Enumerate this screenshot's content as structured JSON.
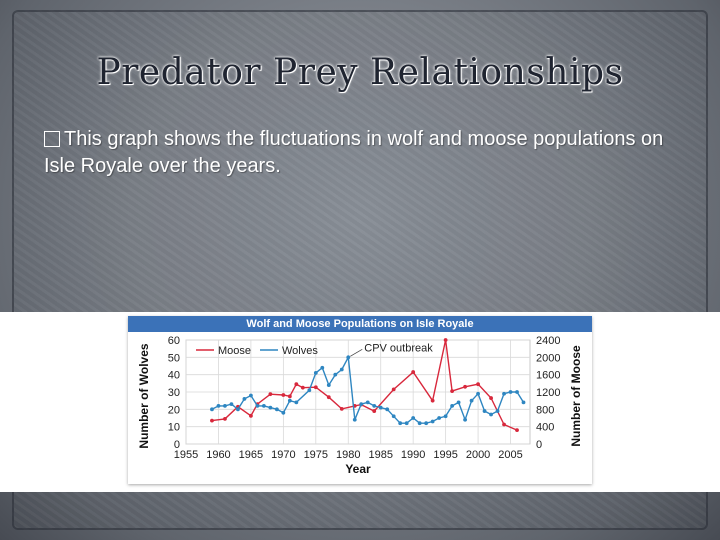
{
  "slide": {
    "title": "Predator Prey Relationships",
    "bullet_text": "This graph shows the fluctuations in wolf and moose populations on Isle Royale over the years."
  },
  "chart_data": {
    "type": "line",
    "title": "Wolf and Moose Populations on Isle Royale",
    "xlabel": "Year",
    "ylabel_left": "Number of Wolves",
    "ylabel_right": "Number of Moose",
    "xlim": [
      1955,
      2008
    ],
    "ylim_left": [
      0,
      60
    ],
    "ylim_right": [
      0,
      2400
    ],
    "x_ticks": [
      1955,
      1960,
      1965,
      1970,
      1975,
      1980,
      1985,
      1990,
      1995,
      2000,
      2005
    ],
    "y_ticks_left": [
      0,
      10,
      20,
      30,
      40,
      50,
      60
    ],
    "y_ticks_right": [
      0,
      400,
      800,
      1200,
      1600,
      2000,
      2400
    ],
    "grid": true,
    "legend": "top-left",
    "annotation": {
      "text": "CPV outbreak",
      "x": 1980,
      "y": 50
    },
    "series": [
      {
        "name": "Moose",
        "axis": "right",
        "color": "#d8283c",
        "x": [
          1959,
          1961,
          1963,
          1965,
          1966,
          1968,
          1970,
          1971,
          1972,
          1973,
          1975,
          1977,
          1979,
          1981,
          1982,
          1984,
          1987,
          1990,
          1993,
          1995,
          1996,
          1998,
          2000,
          2002,
          2004,
          2006
        ],
        "y": [
          540,
          580,
          860,
          650,
          920,
          1150,
          1130,
          1100,
          1380,
          1300,
          1310,
          1080,
          810,
          880,
          910,
          760,
          1260,
          1660,
          1000,
          2400,
          1220,
          1320,
          1380,
          1060,
          450,
          320
        ]
      },
      {
        "name": "Wolves",
        "axis": "left",
        "color": "#2e86c1",
        "x": [
          1959,
          1960,
          1961,
          1962,
          1963,
          1964,
          1965,
          1966,
          1967,
          1968,
          1969,
          1970,
          1971,
          1972,
          1974,
          1975,
          1976,
          1977,
          1978,
          1979,
          1980,
          1981,
          1982,
          1983,
          1984,
          1985,
          1986,
          1987,
          1988,
          1989,
          1990,
          1991,
          1992,
          1993,
          1994,
          1995,
          1996,
          1997,
          1998,
          1999,
          2000,
          2001,
          2002,
          2003,
          2004,
          2005,
          2006,
          2007
        ],
        "y": [
          20,
          22,
          22,
          23,
          20,
          26,
          28,
          22,
          22,
          21,
          20,
          18,
          25,
          24,
          31,
          41,
          44,
          34,
          40,
          43,
          50,
          14,
          23,
          24,
          22,
          21,
          20,
          16,
          12,
          12,
          15,
          12,
          12,
          13,
          15,
          16,
          22,
          24,
          14,
          25,
          29,
          19,
          17,
          19,
          29,
          30,
          30,
          24
        ]
      }
    ]
  }
}
